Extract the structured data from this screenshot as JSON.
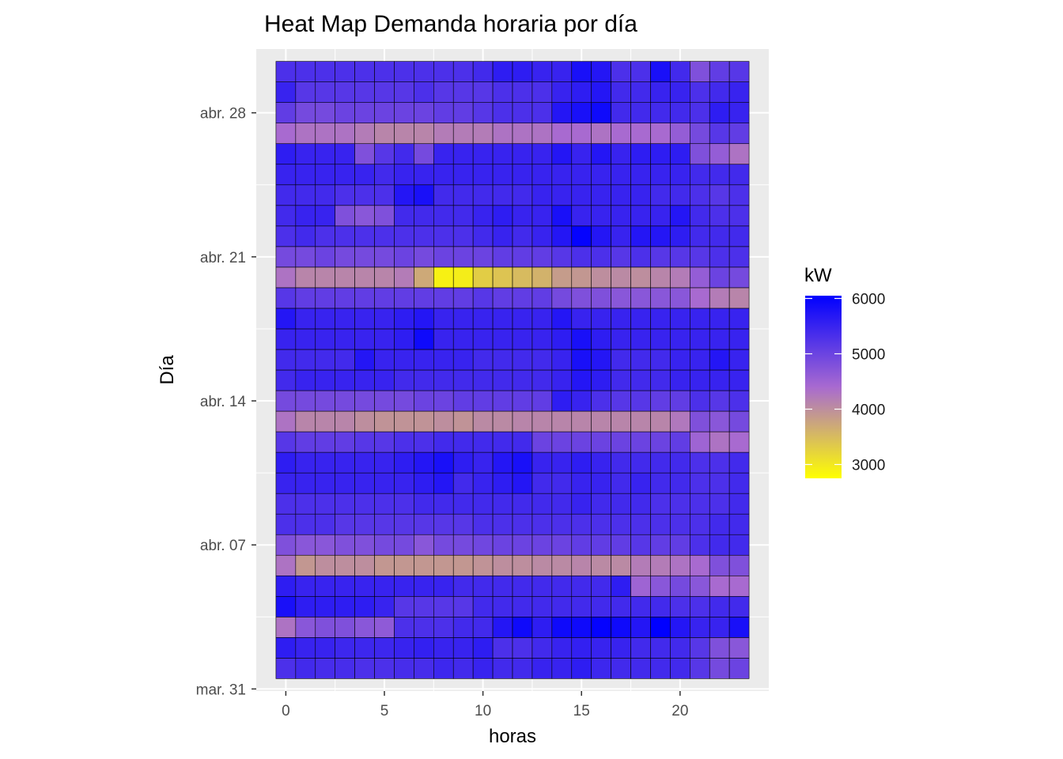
{
  "chart_data": {
    "type": "heatmap",
    "title": "Heat Map Demanda horaria por día",
    "xlabel": "horas",
    "ylabel": "Día",
    "x": [
      0,
      1,
      2,
      3,
      4,
      5,
      6,
      7,
      8,
      9,
      10,
      11,
      12,
      13,
      14,
      15,
      16,
      17,
      18,
      19,
      20,
      21,
      22,
      23
    ],
    "x_ticks": [
      0,
      5,
      10,
      15,
      20
    ],
    "xlim": [
      -1.5,
      24.5
    ],
    "y_ticks": [
      {
        "day": 0,
        "label": "mar. 31"
      },
      {
        "day": 7,
        "label": "abr. 07"
      },
      {
        "day": 14,
        "label": "abr. 14"
      },
      {
        "day": 21,
        "label": "abr. 21"
      },
      {
        "day": 28,
        "label": "abr. 28"
      }
    ],
    "y_days": [
      1,
      2,
      3,
      4,
      5,
      6,
      7,
      8,
      9,
      10,
      11,
      12,
      13,
      14,
      15,
      16,
      17,
      18,
      19,
      20,
      21,
      22,
      23,
      24,
      25,
      26,
      27,
      28,
      29,
      30
    ],
    "ylim": [
      -0.1,
      31.1
    ],
    "value_unit": "kW",
    "color_scale": {
      "low": "#ffff00",
      "mid": "#a86ad0",
      "high": "#0000ff",
      "limits": [
        2750,
        6050
      ]
    },
    "legend": {
      "title": "kW",
      "breaks": [
        3000,
        4000,
        5000,
        6000
      ],
      "position": "right"
    },
    "grid": true,
    "values": [
      [
        5300,
        5400,
        5350,
        5350,
        5300,
        5300,
        5350,
        5350,
        5450,
        5400,
        5500,
        5400,
        5400,
        5500,
        5500,
        5600,
        5450,
        5400,
        5400,
        5400,
        5400,
        5200,
        4900,
        5000
      ],
      [
        5600,
        5500,
        5500,
        5450,
        5450,
        5450,
        5500,
        5550,
        5500,
        5500,
        5600,
        5300,
        5300,
        5400,
        5500,
        5550,
        5500,
        5500,
        5400,
        5400,
        5400,
        5200,
        4800,
        4700
      ],
      [
        4300,
        4700,
        4800,
        4800,
        4700,
        4650,
        5300,
        5300,
        5300,
        5400,
        5400,
        5700,
        5900,
        5600,
        5900,
        5900,
        6000,
        5900,
        5700,
        6050,
        5700,
        5500,
        5500,
        5800
      ],
      [
        5800,
        5600,
        5600,
        5600,
        5600,
        5500,
        5200,
        5200,
        5200,
        5200,
        5400,
        5400,
        5400,
        5400,
        5400,
        5400,
        5400,
        5400,
        5400,
        5400,
        5300,
        5300,
        5400,
        5400
      ],
      [
        5600,
        5500,
        5500,
        5500,
        5500,
        5500,
        5500,
        5500,
        5500,
        5400,
        5400,
        5400,
        5400,
        5400,
        5400,
        5400,
        5400,
        5600,
        4500,
        4700,
        4900,
        4700,
        4400,
        4400
      ],
      [
        4300,
        3900,
        4000,
        4000,
        4000,
        3900,
        3900,
        3900,
        3900,
        3900,
        3950,
        4000,
        4000,
        4050,
        4050,
        4100,
        4050,
        4050,
        4200,
        4200,
        4300,
        4400,
        4800,
        4800
      ],
      [
        4800,
        4700,
        4700,
        4800,
        4800,
        4900,
        4900,
        4700,
        4900,
        4900,
        4950,
        5000,
        5000,
        5000,
        5000,
        5100,
        5100,
        5100,
        5200,
        5100,
        5100,
        5300,
        5400,
        5400
      ],
      [
        5300,
        5300,
        5300,
        5200,
        5200,
        5200,
        5200,
        5200,
        5200,
        5200,
        5300,
        5300,
        5300,
        5300,
        5300,
        5300,
        5300,
        5300,
        5300,
        5300,
        5300,
        5300,
        5400,
        5400
      ],
      [
        5300,
        5300,
        5300,
        5300,
        5300,
        5300,
        5300,
        5400,
        5400,
        5400,
        5400,
        5400,
        5400,
        5400,
        5400,
        5500,
        5400,
        5400,
        5400,
        5300,
        5300,
        5300,
        5300,
        5400
      ],
      [
        5500,
        5500,
        5500,
        5500,
        5500,
        5500,
        5500,
        5600,
        5700,
        5400,
        5500,
        5600,
        5700,
        5400,
        5400,
        5500,
        5500,
        5400,
        5500,
        5400,
        5400,
        5300,
        5300,
        5400
      ],
      [
        5600,
        5500,
        5500,
        5500,
        5500,
        5500,
        5600,
        5700,
        5800,
        5600,
        5500,
        5700,
        5800,
        5500,
        5500,
        5600,
        5500,
        5400,
        5400,
        5400,
        5400,
        5300,
        5300,
        5400
      ],
      [
        5200,
        5100,
        5100,
        5100,
        5200,
        5200,
        5300,
        5300,
        5400,
        5400,
        5400,
        5400,
        5400,
        5000,
        5000,
        5000,
        5000,
        5000,
        5000,
        5000,
        5100,
        4500,
        4300,
        4400
      ],
      [
        4300,
        4100,
        4100,
        4100,
        4000,
        3950,
        3950,
        3950,
        4000,
        3950,
        4050,
        4050,
        4100,
        4100,
        4100,
        4100,
        4100,
        4100,
        4100,
        4100,
        4250,
        4800,
        4700,
        4900
      ],
      [
        4900,
        4900,
        4900,
        4900,
        4900,
        4900,
        4900,
        5000,
        5000,
        5100,
        5100,
        5100,
        5100,
        5100,
        5600,
        5500,
        5300,
        5200,
        5200,
        5100,
        5100,
        5300,
        5200,
        5300
      ],
      [
        5400,
        5500,
        5500,
        5500,
        5500,
        5500,
        5400,
        5400,
        5400,
        5400,
        5400,
        5400,
        5400,
        5400,
        5500,
        5700,
        5600,
        5400,
        5400,
        5400,
        5500,
        5500,
        5500,
        5500
      ],
      [
        5400,
        5400,
        5400,
        5400,
        5700,
        5500,
        5500,
        5500,
        5500,
        5500,
        5400,
        5400,
        5400,
        5400,
        5500,
        5800,
        5700,
        5400,
        5400,
        5400,
        5500,
        5500,
        5700,
        5500
      ],
      [
        5500,
        5500,
        5500,
        5500,
        5500,
        5500,
        5600,
        5900,
        5500,
        5500,
        5500,
        5500,
        5500,
        5500,
        5600,
        5800,
        5600,
        5500,
        5500,
        5500,
        5500,
        5500,
        5500,
        5500
      ],
      [
        5700,
        5500,
        5500,
        5500,
        5500,
        5500,
        5600,
        5700,
        5500,
        5500,
        5500,
        5500,
        5500,
        5500,
        5700,
        5500,
        5500,
        5500,
        5500,
        5500,
        5500,
        5500,
        5500,
        5500
      ],
      [
        5200,
        5100,
        5100,
        5100,
        5100,
        5100,
        5100,
        5100,
        5100,
        5100,
        5200,
        5100,
        5100,
        5100,
        4900,
        4800,
        4800,
        4700,
        4700,
        4700,
        4700,
        4400,
        4200,
        4100
      ],
      [
        4300,
        4100,
        4100,
        4100,
        4100,
        4100,
        4200,
        3700,
        2900,
        2950,
        3300,
        3400,
        3500,
        3600,
        3850,
        3900,
        4000,
        4050,
        4000,
        4100,
        4200,
        4600,
        5000,
        4900
      ],
      [
        4900,
        4900,
        5000,
        4900,
        4900,
        4900,
        5000,
        4900,
        5000,
        5000,
        5000,
        5100,
        5100,
        5100,
        5200,
        5300,
        5300,
        5200,
        5300,
        5200,
        5200,
        5200,
        5300,
        5300
      ],
      [
        5300,
        5400,
        5300,
        5300,
        5300,
        5300,
        5300,
        5300,
        5300,
        5300,
        5400,
        5500,
        5400,
        5500,
        5700,
        6000,
        5700,
        5500,
        5700,
        5700,
        5600,
        5400,
        5400,
        5400
      ],
      [
        5400,
        5500,
        5500,
        4800,
        4700,
        4800,
        5400,
        5400,
        5400,
        5400,
        5500,
        5600,
        5500,
        5500,
        5800,
        5500,
        5500,
        5500,
        5500,
        5500,
        5700,
        5400,
        5300,
        5300
      ],
      [
        5400,
        5400,
        5400,
        5300,
        5300,
        5300,
        5700,
        5800,
        5400,
        5400,
        5400,
        5400,
        5400,
        5500,
        5500,
        5500,
        5500,
        5500,
        5500,
        5400,
        5400,
        5300,
        5200,
        5300
      ],
      [
        5500,
        5500,
        5500,
        5500,
        5500,
        5400,
        5500,
        5500,
        5500,
        5500,
        5500,
        5500,
        5500,
        5500,
        5500,
        5500,
        5500,
        5500,
        5500,
        5500,
        5500,
        5400,
        5400,
        5400
      ],
      [
        5600,
        5500,
        5500,
        5500,
        4800,
        5200,
        5400,
        4900,
        5500,
        5500,
        5500,
        5500,
        5500,
        5500,
        5700,
        5500,
        5700,
        5500,
        5600,
        5600,
        5600,
        4800,
        4600,
        4300
      ],
      [
        4400,
        4300,
        4300,
        4300,
        4200,
        4100,
        4100,
        4100,
        4200,
        4200,
        4200,
        4300,
        4300,
        4300,
        4400,
        4400,
        4300,
        4400,
        4400,
        4400,
        4600,
        4900,
        5200,
        5100
      ],
      [
        5100,
        4900,
        4900,
        5000,
        5000,
        5000,
        5000,
        5000,
        5100,
        5100,
        5200,
        5300,
        5300,
        5300,
        5700,
        5800,
        5900,
        5400,
        5400,
        5400,
        5400,
        5300,
        5600,
        5500
      ],
      [
        5500,
        5200,
        5200,
        5200,
        5200,
        5200,
        5200,
        5300,
        5200,
        5200,
        5200,
        5300,
        5300,
        5300,
        5500,
        5600,
        5700,
        5400,
        5400,
        5500,
        5500,
        5300,
        5400,
        5500
      ],
      [
        5300,
        5300,
        5300,
        5300,
        5300,
        5300,
        5300,
        5300,
        5300,
        5300,
        5400,
        5600,
        5600,
        5500,
        5500,
        5800,
        5700,
        5300,
        5300,
        5800,
        5400,
        4800,
        5100,
        5200
      ]
    ]
  }
}
